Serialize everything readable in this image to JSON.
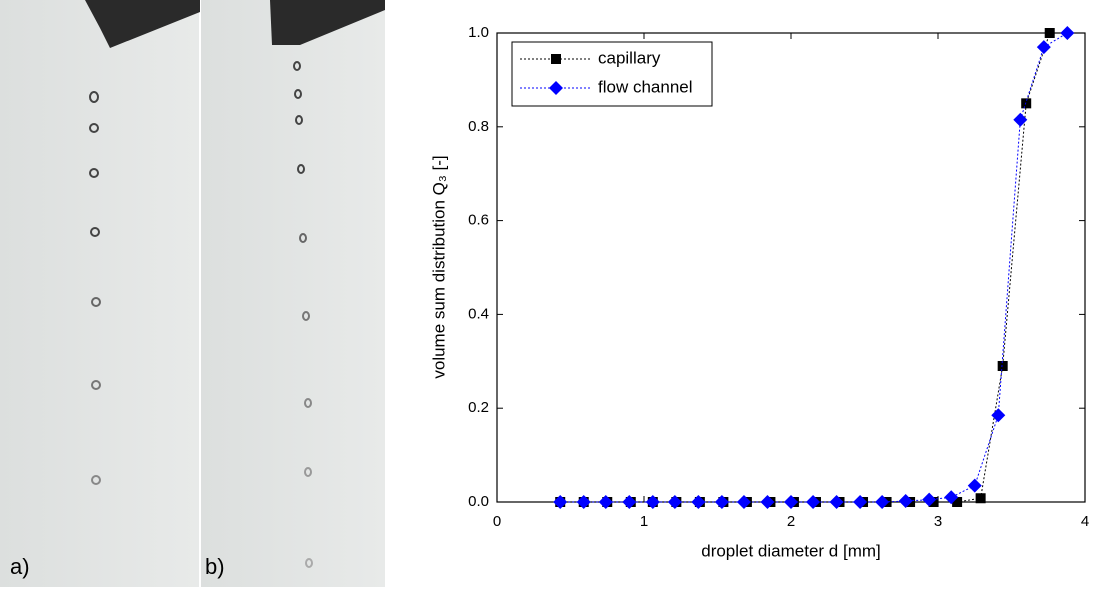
{
  "panel_labels": [
    "a)",
    "b)"
  ],
  "chart_data": {
    "type": "line",
    "xlabel": "droplet diameter d [mm]",
    "ylabel": "volume sum distribution Q₃ [-]",
    "xlim": [
      0,
      4
    ],
    "ylim": [
      0,
      1
    ],
    "xticks": [
      0,
      1,
      2,
      3,
      4
    ],
    "yticks": [
      {
        "value": 0,
        "label": "0.0"
      },
      0.2,
      0.4,
      0.6,
      0.8,
      {
        "value": 1,
        "label": "1.0"
      }
    ],
    "legend": "upper left",
    "series": [
      {
        "name": "capillary",
        "color": "#000000",
        "marker": "square",
        "x": [
          0.43,
          0.59,
          0.75,
          0.91,
          1.06,
          1.22,
          1.38,
          1.54,
          1.7,
          1.86,
          2.02,
          2.17,
          2.33,
          2.49,
          2.65,
          2.81,
          2.97,
          3.13,
          3.29,
          3.44,
          3.6,
          3.76
        ],
        "values": [
          0,
          0,
          0,
          0,
          0,
          0,
          0,
          0,
          0,
          0,
          0,
          0,
          0,
          0,
          0,
          0,
          0,
          0,
          0.008,
          0.29,
          0.85,
          1.0
        ]
      },
      {
        "name": "flow channel",
        "color": "#0000ff",
        "marker": "diamond",
        "x": [
          0.43,
          0.59,
          0.74,
          0.9,
          1.06,
          1.21,
          1.37,
          1.53,
          1.68,
          1.84,
          2.0,
          2.15,
          2.31,
          2.47,
          2.62,
          2.78,
          2.94,
          3.09,
          3.25,
          3.41,
          3.56,
          3.72,
          3.88
        ],
        "values": [
          0,
          0,
          0,
          0,
          0,
          0,
          0,
          0,
          0,
          0,
          0,
          0,
          0,
          0,
          0,
          0.002,
          0.005,
          0.01,
          0.035,
          0.185,
          0.815,
          0.97,
          1.0
        ]
      }
    ]
  }
}
